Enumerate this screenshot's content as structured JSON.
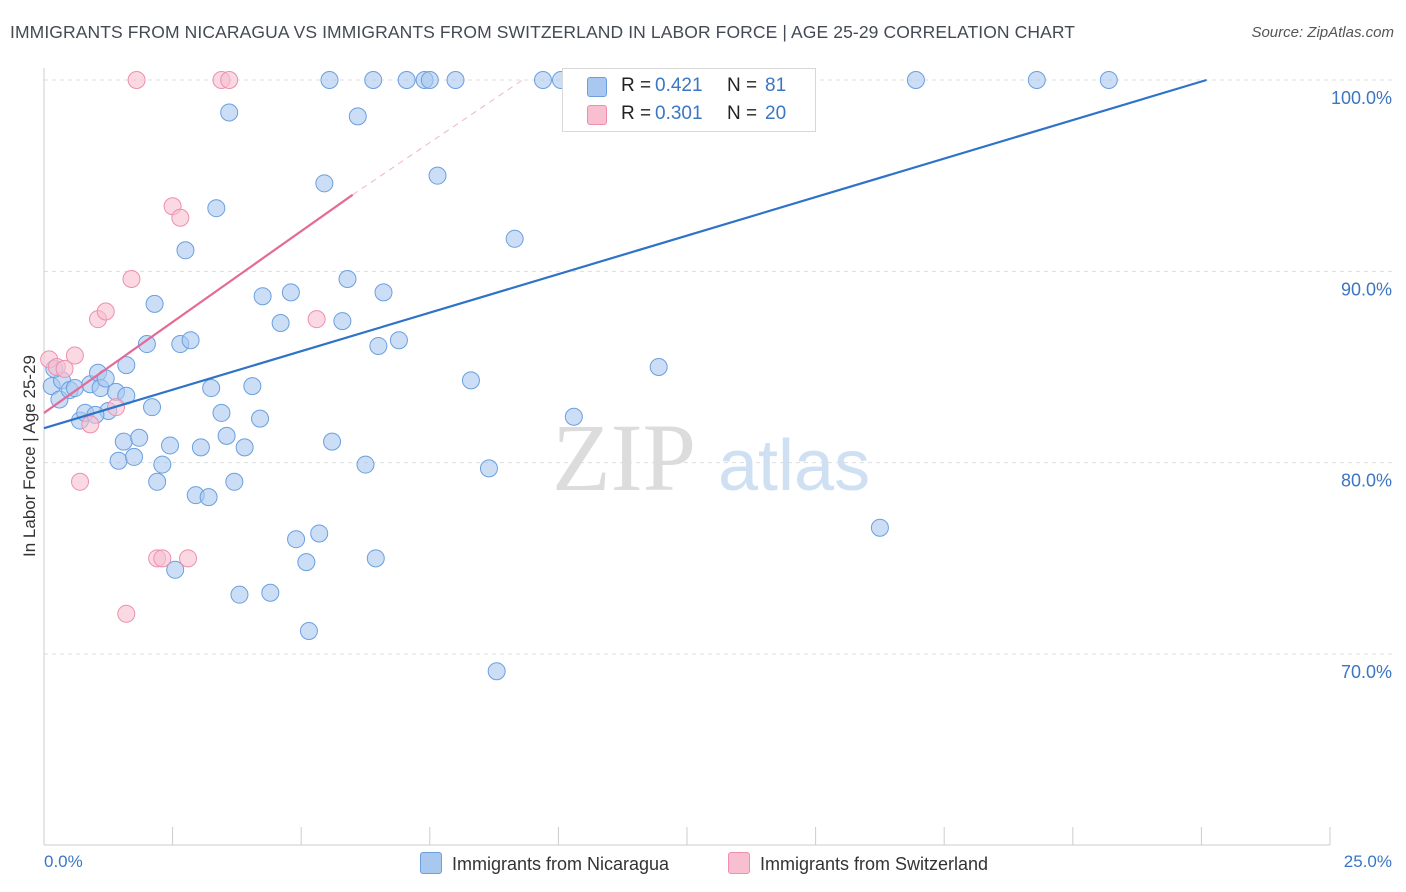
{
  "title": "IMMIGRANTS FROM NICARAGUA VS IMMIGRANTS FROM SWITZERLAND IN LABOR FORCE | AGE 25-29 CORRELATION CHART",
  "source": "Source: ZipAtlas.com",
  "watermark": {
    "zip": "ZIP",
    "atlas": "atlas"
  },
  "legend_top": [
    {
      "r_label": "R =",
      "r_value": "0.421",
      "n_label": "N =",
      "n_value": "81"
    },
    {
      "r_label": "R =",
      "r_value": "0.301",
      "n_label": "N =",
      "n_value": "20"
    }
  ],
  "legend_bottom": [
    {
      "label": "Immigrants from Nicaragua"
    },
    {
      "label": "Immigrants from Switzerland"
    }
  ],
  "colors": {
    "nicaragua_fill": "#a9c8ef",
    "nicaragua_stroke": "#6b9fe0",
    "nicaragua_line": "#2f73c8",
    "switzerland_fill": "#f7bfd0",
    "switzerland_stroke": "#ee8fae",
    "switzerland_line": "#e46a97",
    "tick_text": "#3b76c4"
  },
  "chart_data": {
    "type": "scatter",
    "title": "IMMIGRANTS FROM NICARAGUA VS IMMIGRANTS FROM SWITZERLAND IN LABOR FORCE | AGE 25-29 CORRELATION CHART",
    "xlabel": "",
    "ylabel": "In Labor Force | Age 25-29",
    "xlim": [
      0,
      25
    ],
    "ylim": [
      60,
      101
    ],
    "x_tick_labels": [
      "0.0%",
      "25.0%"
    ],
    "y_ticks": [
      70,
      80,
      90,
      100
    ],
    "y_tick_labels": [
      "70.0%",
      "80.0%",
      "90.0%",
      "100.0%"
    ],
    "grid": true,
    "legend_position": "top-center",
    "series": [
      {
        "name": "Immigrants from Nicaragua",
        "r": 0.421,
        "n": 81,
        "trend": {
          "x": [
            0,
            22.6
          ],
          "y": [
            81.8,
            100.0
          ]
        },
        "points": [
          [
            0.15,
            84.0
          ],
          [
            0.3,
            83.3
          ],
          [
            0.35,
            84.3
          ],
          [
            0.5,
            83.8
          ],
          [
            0.6,
            83.9
          ],
          [
            0.7,
            82.2
          ],
          [
            0.8,
            82.6
          ],
          [
            0.9,
            84.1
          ],
          [
            1.05,
            84.7
          ],
          [
            1.1,
            83.9
          ],
          [
            1.2,
            84.4
          ],
          [
            1.25,
            82.7
          ],
          [
            1.4,
            83.7
          ],
          [
            1.6,
            83.5
          ],
          [
            1.45,
            80.1
          ],
          [
            1.55,
            81.1
          ],
          [
            1.6,
            85.1
          ],
          [
            1.75,
            80.3
          ],
          [
            1.85,
            81.3
          ],
          [
            2.0,
            86.2
          ],
          [
            2.15,
            88.3
          ],
          [
            2.2,
            79.0
          ],
          [
            2.3,
            79.9
          ],
          [
            2.45,
            80.9
          ],
          [
            2.55,
            74.4
          ],
          [
            2.65,
            86.2
          ],
          [
            2.75,
            91.1
          ],
          [
            2.85,
            86.4
          ],
          [
            2.95,
            78.3
          ],
          [
            3.05,
            80.8
          ],
          [
            3.2,
            78.2
          ],
          [
            3.25,
            83.9
          ],
          [
            3.35,
            93.3
          ],
          [
            3.45,
            82.6
          ],
          [
            3.55,
            81.4
          ],
          [
            3.6,
            98.3
          ],
          [
            3.7,
            79.0
          ],
          [
            3.8,
            73.1
          ],
          [
            3.9,
            80.8
          ],
          [
            4.05,
            84.0
          ],
          [
            4.2,
            82.3
          ],
          [
            4.25,
            88.7
          ],
          [
            4.4,
            73.2
          ],
          [
            4.6,
            87.3
          ],
          [
            4.8,
            88.9
          ],
          [
            4.9,
            76.0
          ],
          [
            5.1,
            74.8
          ],
          [
            5.15,
            71.2
          ],
          [
            5.35,
            76.3
          ],
          [
            5.45,
            94.6
          ],
          [
            5.6,
            81.1
          ],
          [
            5.55,
            100.0
          ],
          [
            5.8,
            87.4
          ],
          [
            5.9,
            89.6
          ],
          [
            6.1,
            98.1
          ],
          [
            6.25,
            79.9
          ],
          [
            6.4,
            100.0
          ],
          [
            6.5,
            86.1
          ],
          [
            6.45,
            75.0
          ],
          [
            6.6,
            88.9
          ],
          [
            6.9,
            86.4
          ],
          [
            7.05,
            100.0
          ],
          [
            7.4,
            100.0
          ],
          [
            7.5,
            100.0
          ],
          [
            7.65,
            95.0
          ],
          [
            8.0,
            100.0
          ],
          [
            8.3,
            84.3
          ],
          [
            8.65,
            79.7
          ],
          [
            8.8,
            69.1
          ],
          [
            9.15,
            91.7
          ],
          [
            9.7,
            100.0
          ],
          [
            10.05,
            100.0
          ],
          [
            10.3,
            82.4
          ],
          [
            11.95,
            85.0
          ],
          [
            16.25,
            76.6
          ],
          [
            16.95,
            100.0
          ],
          [
            19.3,
            100.0
          ],
          [
            20.7,
            100.0
          ],
          [
            0.2,
            84.9
          ],
          [
            1.0,
            82.5
          ],
          [
            2.1,
            82.9
          ]
        ]
      },
      {
        "name": "Immigrants from Switzerland",
        "r": 0.301,
        "n": 20,
        "trend": {
          "x": [
            0,
            6.0
          ],
          "y": [
            82.6,
            94.0
          ]
        },
        "trend_dashed": {
          "x": [
            6.0,
            9.3
          ],
          "y": [
            94.0,
            100.0
          ]
        },
        "points": [
          [
            0.1,
            85.4
          ],
          [
            0.25,
            85.0
          ],
          [
            0.4,
            84.9
          ],
          [
            0.6,
            85.6
          ],
          [
            0.7,
            79.0
          ],
          [
            0.9,
            82.0
          ],
          [
            1.05,
            87.5
          ],
          [
            1.2,
            87.9
          ],
          [
            1.4,
            82.9
          ],
          [
            1.7,
            89.6
          ],
          [
            1.8,
            100.0
          ],
          [
            2.2,
            75.0
          ],
          [
            2.3,
            75.0
          ],
          [
            2.5,
            93.4
          ],
          [
            2.65,
            92.8
          ],
          [
            2.8,
            75.0
          ],
          [
            1.6,
            72.1
          ],
          [
            3.45,
            100.0
          ],
          [
            3.6,
            100.0
          ],
          [
            5.3,
            87.5
          ]
        ]
      }
    ]
  }
}
